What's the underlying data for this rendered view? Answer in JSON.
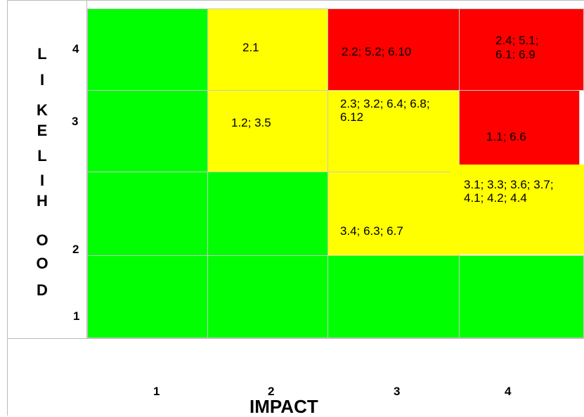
{
  "colors": {
    "green": "#00ff00",
    "yellow": "#ffff00",
    "red": "#ff0000"
  },
  "y_axis": {
    "label_letters": [
      "L",
      "I",
      "K",
      "E",
      "L",
      "I",
      "H",
      "O",
      "O",
      "D"
    ],
    "ticks": [
      "4",
      "3",
      "2",
      "1"
    ]
  },
  "x_axis": {
    "label": "IMPACT",
    "ticks": [
      "1",
      "2",
      "3",
      "4"
    ]
  },
  "cells": {
    "r4c2": "2.1",
    "r4c3": "2.2; 5.2; 6.10",
    "r4c4_line1": "2.4; 5.1;",
    "r4c4_line2": "6.1: 6.9",
    "r3c2": "1.2; 3.5",
    "r3c3": "2.3; 3.2; 6.4; 6.8; 6.12",
    "r3c4": "1.1; 6.6",
    "r2c3": "3.4; 6.3; 6.7",
    "r2c4": "3.1; 3.3; 3.6; 3.7; 4.1; 4.2; 4.4"
  }
}
